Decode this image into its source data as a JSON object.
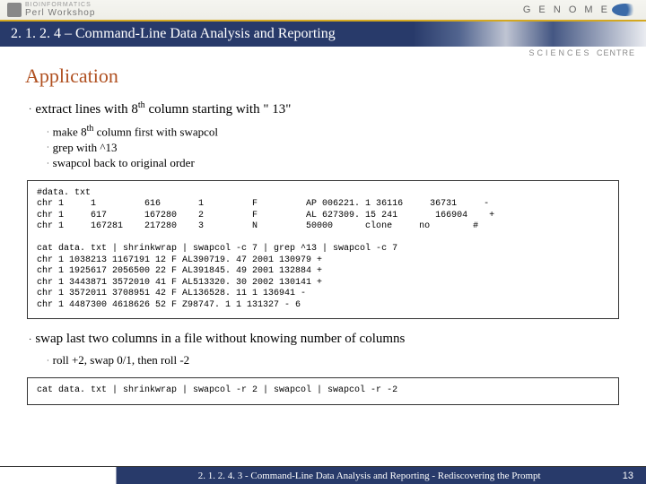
{
  "header": {
    "left_small": "BIOINFORMATICS",
    "left_text": "Perl Workshop",
    "right_g": "G E N O M E",
    "right_sub": "SCIENCES",
    "right_sub2": "CENTRE"
  },
  "title": "2. 1. 2. 4 – Command-Line Data Analysis and Reporting",
  "content": {
    "heading": "Application",
    "bullet1": "extract lines with 8",
    "bullet1_tail": " column starting with \" 13\"",
    "sub1": "make 8",
    "sub1_tail": " column first with swapcol",
    "sub2": "grep with ^13",
    "sub3": "swapcol back to original order",
    "code1": "#data. txt\nchr 1     1         616       1         F         AP 006221. 1 36116     36731     -\nchr 1     617       167280    2         F         AL 627309. 15 241       166904    +\nchr 1     167281    217280    3         N         50000      clone     no        #\n\ncat data. txt | shrinkwrap | swapcol -c 7 | grep ^13 | swapcol -c 7\nchr 1 1038213 1167191 12 F AL390719. 47 2001 130979 +\nchr 1 1925617 2056500 22 F AL391845. 49 2001 132884 +\nchr 1 3443871 3572010 41 F AL513320. 30 2002 130141 +\nchr 1 3572011 3708951 42 F AL136528. 11 1 136941 -\nchr 1 4487300 4618626 52 F Z98747. 1 1 131327 - 6",
    "bullet2": "swap last two columns in a file without knowing number of columns",
    "sub4": "roll +2, swap 0/1, then roll -2",
    "code2": "cat data. txt | shrinkwrap | swapcol -r 2 | swapcol | swapcol -r -2"
  },
  "footer": {
    "text": "2. 1. 2. 4. 3 - Command-Line Data Analysis and Reporting - Rediscovering the Prompt",
    "page": "13"
  },
  "colors": {
    "title_bg": "#283a6a",
    "heading": "#b05020",
    "gold_line": "#d4a820"
  }
}
